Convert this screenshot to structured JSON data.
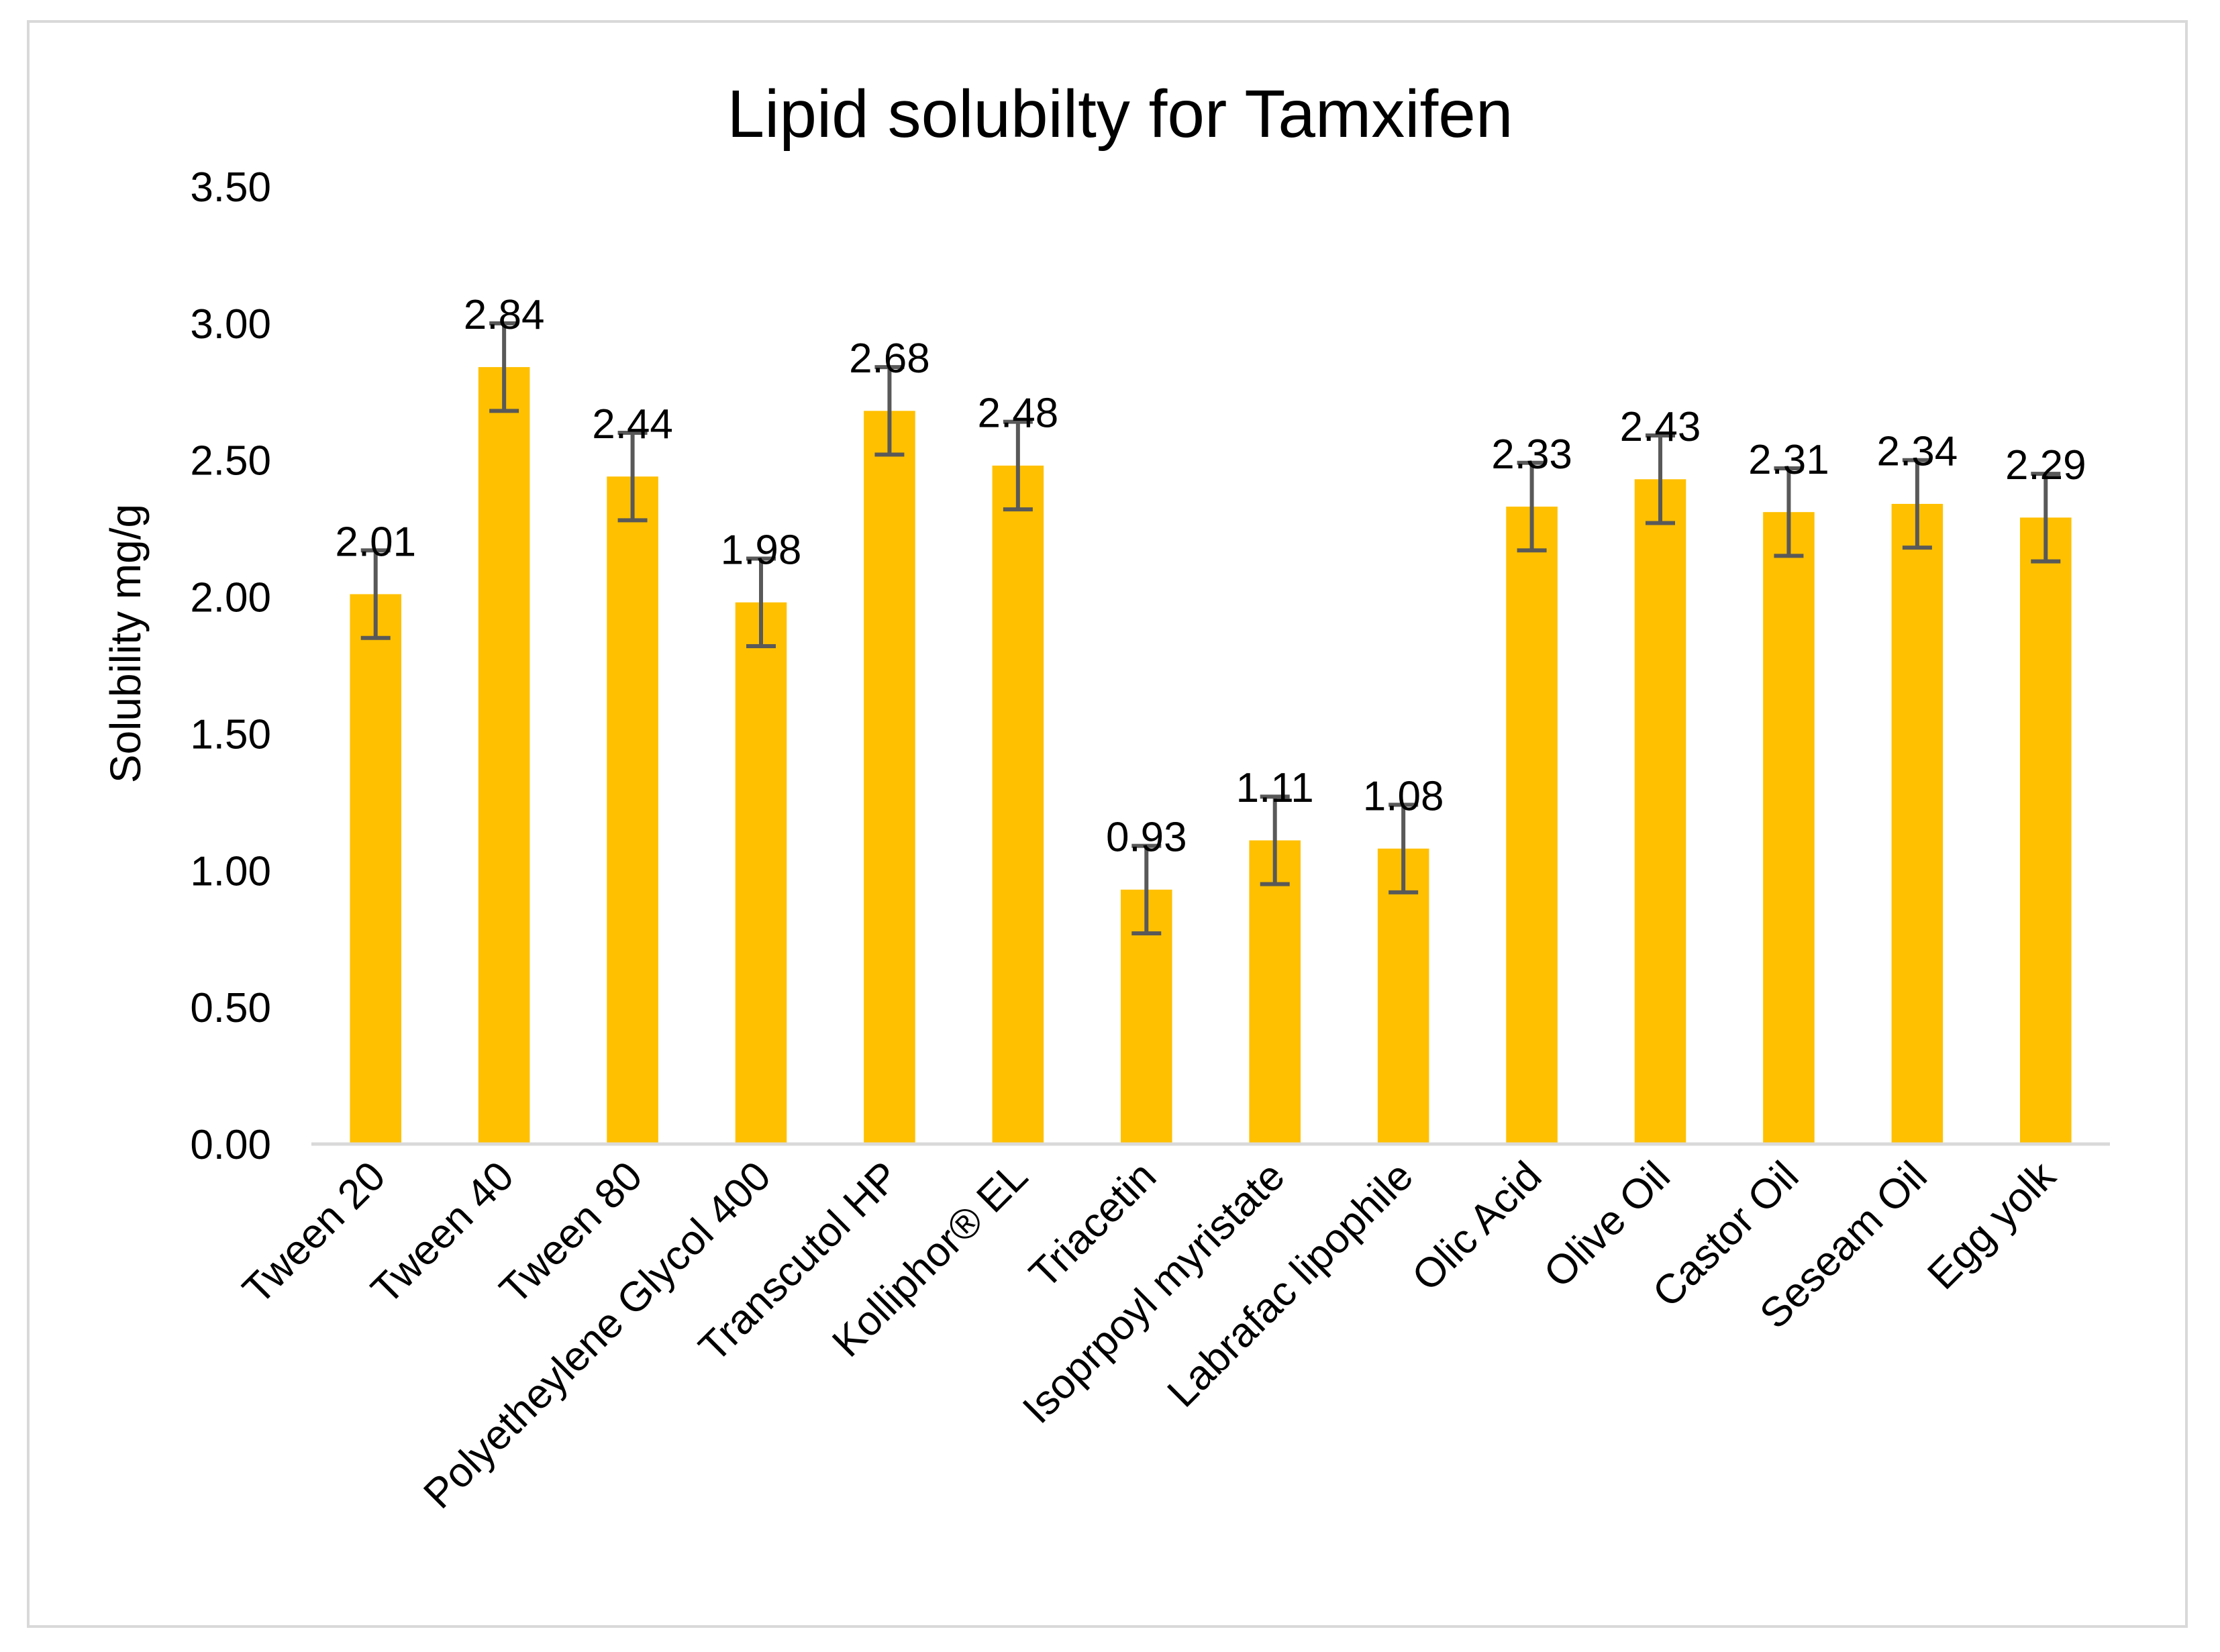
{
  "chart_data": {
    "type": "bar",
    "title": "Lipid solubilty for Tamxifen",
    "xlabel": "",
    "ylabel": "Solubility mg/g",
    "ylim": [
      0,
      3.5
    ],
    "yticks": [
      0,
      0.5,
      1.0,
      1.5,
      2.0,
      2.5,
      3.0,
      3.5
    ],
    "ytick_labels": [
      "0.00",
      "0.50",
      "1.00",
      "1.50",
      "2.00",
      "2.50",
      "3.00",
      "3.50"
    ],
    "grid": false,
    "legend": "none",
    "categories": [
      "Tween 20",
      "Tween 40",
      "Tween 80",
      "Polyetheylene Glycol 400",
      "Transcutol HP",
      "Kolliphor® EL",
      "Triacetin",
      "Isoprpoyl myristate",
      "Labrafac lipophile",
      "Olic Acid",
      "Olive Oil",
      "Castor Oil",
      "Seseam Oil",
      "Egg yolk"
    ],
    "values": [
      2.01,
      2.84,
      2.44,
      1.98,
      2.68,
      2.48,
      0.93,
      1.11,
      1.08,
      2.33,
      2.43,
      2.31,
      2.34,
      2.29
    ],
    "value_labels": [
      "2.01",
      "2.84",
      "2.44",
      "1.98",
      "2.68",
      "2.48",
      "0.93",
      "1.11",
      "1.08",
      "2.33",
      "2.43",
      "2.31",
      "2.34",
      "2.29"
    ],
    "error": [
      0.16,
      0.16,
      0.16,
      0.16,
      0.16,
      0.16,
      0.16,
      0.16,
      0.16,
      0.16,
      0.16,
      0.16,
      0.16,
      0.16
    ],
    "colors": {
      "bar": "#FFC000",
      "error_bar": "#595959",
      "axis": "#d9d9d9",
      "text": "#000000"
    }
  }
}
